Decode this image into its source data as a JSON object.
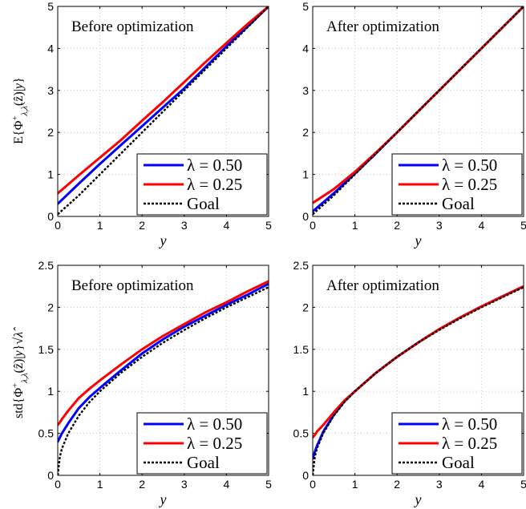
{
  "chart_data": [
    {
      "type": "line",
      "title": "Before optimization",
      "xlabel": "y",
      "ylabel": "E{Φ⁺λ,λ̂(ẑ)|y}",
      "xlim": [
        0,
        5
      ],
      "ylim": [
        0,
        5
      ],
      "xticks": [
        "0",
        "1",
        "2",
        "3",
        "4",
        "5"
      ],
      "yticks": [
        "0",
        "1",
        "2",
        "3",
        "4",
        "5"
      ],
      "grid": true,
      "legend": "bottom-right",
      "x": [
        0,
        0.5,
        1,
        1.5,
        2,
        2.5,
        3,
        3.5,
        4,
        4.5,
        5
      ],
      "series": [
        {
          "name": "λ = 0.50",
          "color": "#0000ff",
          "values": [
            0.3,
            0.78,
            1.25,
            1.7,
            2.15,
            2.6,
            3.05,
            3.55,
            4.05,
            4.52,
            5.0
          ]
        },
        {
          "name": "λ = 0.25",
          "color": "#ff0000",
          "values": [
            0.55,
            0.98,
            1.4,
            1.82,
            2.28,
            2.73,
            3.2,
            3.67,
            4.13,
            4.58,
            5.0
          ]
        },
        {
          "name": "Goal",
          "color": "#000000",
          "dashed": true,
          "values": [
            0.05,
            0.5,
            1.0,
            1.5,
            2.0,
            2.5,
            3.0,
            3.5,
            4.0,
            4.5,
            5.0
          ]
        }
      ]
    },
    {
      "type": "line",
      "title": "After optimization",
      "xlabel": "y",
      "ylabel": "",
      "xlim": [
        0,
        5
      ],
      "ylim": [
        0,
        5
      ],
      "xticks": [
        "0",
        "1",
        "2",
        "3",
        "4",
        "5"
      ],
      "yticks": [
        "0",
        "1",
        "2",
        "3",
        "4",
        "5"
      ],
      "grid": true,
      "legend": "bottom-right",
      "x": [
        0,
        0.5,
        1,
        1.5,
        2,
        2.5,
        3,
        3.5,
        4,
        4.5,
        5
      ],
      "series": [
        {
          "name": "λ = 0.50",
          "color": "#0000ff",
          "values": [
            0.12,
            0.55,
            1.02,
            1.5,
            2.0,
            2.5,
            3.0,
            3.5,
            4.0,
            4.5,
            5.0
          ]
        },
        {
          "name": "λ = 0.25",
          "color": "#ff0000",
          "values": [
            0.32,
            0.65,
            1.06,
            1.52,
            2.0,
            2.5,
            3.0,
            3.5,
            4.0,
            4.5,
            5.0
          ]
        },
        {
          "name": "Goal",
          "color": "#000000",
          "dashed": true,
          "values": [
            0.05,
            0.5,
            1.0,
            1.5,
            2.0,
            2.5,
            3.0,
            3.5,
            4.0,
            4.5,
            5.0
          ]
        }
      ]
    },
    {
      "type": "line",
      "title": "Before optimization",
      "xlabel": "y",
      "ylabel": "std{Φ⁺λ,λ̂(ẑ)|y}√λ",
      "xlim": [
        0,
        5
      ],
      "ylim": [
        0,
        2.5
      ],
      "xticks": [
        "0",
        "1",
        "2",
        "3",
        "4",
        "5"
      ],
      "yticks": [
        "0",
        "0.5",
        "1",
        "1.5",
        "2",
        "2.5"
      ],
      "grid": true,
      "legend": "bottom-right",
      "x": [
        0,
        0.05,
        0.1,
        0.25,
        0.5,
        0.75,
        1,
        1.5,
        2,
        2.5,
        3,
        3.5,
        4,
        4.5,
        5
      ],
      "series": [
        {
          "name": "λ = 0.50",
          "color": "#0000ff",
          "values": [
            0.4,
            0.45,
            0.5,
            0.62,
            0.8,
            0.93,
            1.04,
            1.25,
            1.45,
            1.62,
            1.77,
            1.9,
            2.03,
            2.15,
            2.28
          ]
        },
        {
          "name": "λ = 0.25",
          "color": "#ff0000",
          "values": [
            0.6,
            0.63,
            0.67,
            0.77,
            0.92,
            1.03,
            1.13,
            1.32,
            1.5,
            1.66,
            1.8,
            1.94,
            2.06,
            2.19,
            2.31
          ]
        },
        {
          "name": "Goal",
          "color": "#000000",
          "dashed": true,
          "values": [
            0.0,
            0.22,
            0.32,
            0.5,
            0.71,
            0.87,
            1.0,
            1.22,
            1.41,
            1.58,
            1.73,
            1.87,
            2.0,
            2.12,
            2.24
          ]
        }
      ]
    },
    {
      "type": "line",
      "title": "After optimization",
      "xlabel": "y",
      "ylabel": "",
      "xlim": [
        0,
        5
      ],
      "ylim": [
        0,
        2.5
      ],
      "xticks": [
        "0",
        "1",
        "2",
        "3",
        "4",
        "5"
      ],
      "yticks": [
        "0",
        "0.5",
        "1",
        "1.5",
        "2",
        "2.5"
      ],
      "grid": true,
      "legend": "bottom-right",
      "x": [
        0,
        0.05,
        0.1,
        0.25,
        0.5,
        0.75,
        1,
        1.5,
        2,
        2.5,
        3,
        3.5,
        4,
        4.5,
        5
      ],
      "series": [
        {
          "name": "λ = 0.50",
          "color": "#0000ff",
          "values": [
            0.2,
            0.28,
            0.35,
            0.52,
            0.72,
            0.88,
            1.0,
            1.22,
            1.41,
            1.58,
            1.74,
            1.88,
            2.01,
            2.13,
            2.25
          ]
        },
        {
          "name": "λ = 0.25",
          "color": "#ff0000",
          "values": [
            0.45,
            0.48,
            0.52,
            0.6,
            0.75,
            0.89,
            1.0,
            1.22,
            1.41,
            1.58,
            1.74,
            1.88,
            2.01,
            2.13,
            2.25
          ]
        },
        {
          "name": "Goal",
          "color": "#000000",
          "dashed": true,
          "values": [
            0.0,
            0.22,
            0.32,
            0.5,
            0.71,
            0.87,
            1.0,
            1.22,
            1.41,
            1.58,
            1.73,
            1.87,
            2.0,
            2.12,
            2.24
          ]
        }
      ]
    }
  ]
}
